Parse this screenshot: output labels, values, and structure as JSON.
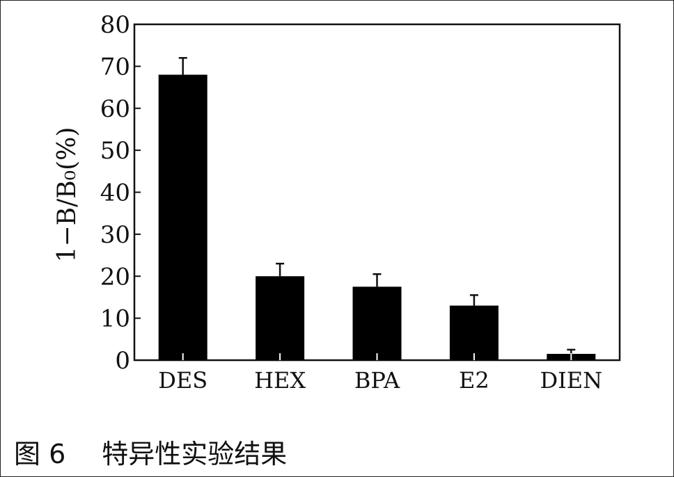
{
  "figure": {
    "caption_prefix": "图 6",
    "caption_title": "特异性实验结果"
  },
  "chart_data": {
    "type": "bar",
    "categories": [
      "DES",
      "HEX",
      "BPA",
      "E2",
      "DIEN"
    ],
    "values": [
      68,
      20,
      17.5,
      13,
      1.5
    ],
    "errors": [
      4,
      3,
      3,
      2.5,
      1
    ],
    "ylabel": "1−B/B₀(%)",
    "ylim": [
      0,
      80
    ],
    "yticks": [
      0,
      10,
      20,
      30,
      40,
      50,
      60,
      70,
      80
    ],
    "grid": false,
    "bar_color": "#000000"
  }
}
